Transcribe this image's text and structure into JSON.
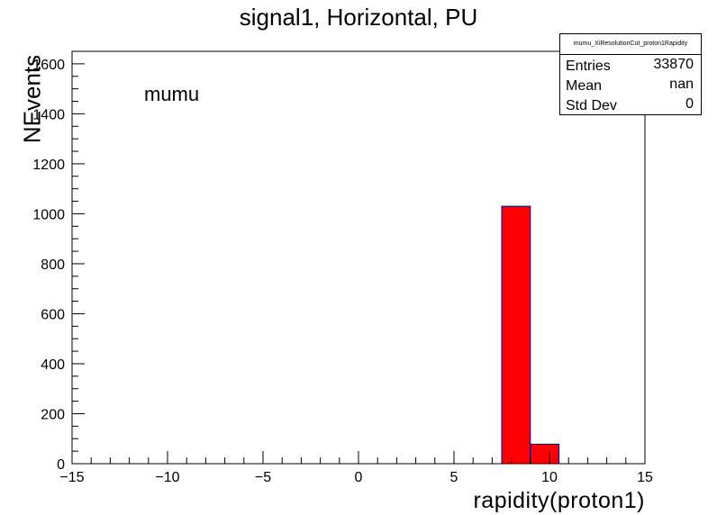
{
  "chart_data": {
    "type": "bar",
    "title": "signal1, Horizontal, PU",
    "xlabel": "rapidity(proton1)",
    "ylabel": "NEvents",
    "annotation": "mumu",
    "xlim": [
      -15,
      15
    ],
    "ylim": [
      0,
      1650
    ],
    "xticks": [
      -15,
      -10,
      -5,
      0,
      5,
      10,
      15
    ],
    "yticks": [
      0,
      200,
      400,
      600,
      800,
      1000,
      1200,
      1400,
      1600
    ],
    "bins": [
      {
        "x0": 7.5,
        "x1": 9.0,
        "value": 1030
      },
      {
        "x0": 9.0,
        "x1": 10.5,
        "value": 78
      }
    ],
    "fill_color": "#ff0000",
    "edge_color": "#000099",
    "grid": false,
    "legend": "none",
    "stats": {
      "title": "mumu_XiResolutionCut_proton1Rapidity",
      "rows": [
        {
          "label": "Entries",
          "value": "33870"
        },
        {
          "label": "Mean",
          "value": "nan"
        },
        {
          "label": "Std Dev",
          "value": "0"
        }
      ]
    }
  }
}
